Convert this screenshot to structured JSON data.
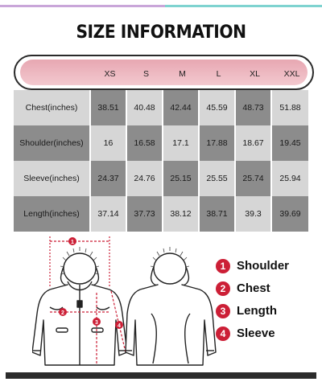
{
  "title": "SIZE INFORMATION",
  "table": {
    "sizes": [
      "XS",
      "S",
      "M",
      "L",
      "XL",
      "XXL"
    ],
    "rows": [
      {
        "label": "Chest(inches)",
        "values": [
          "38.51",
          "40.48",
          "42.44",
          "45.59",
          "48.73",
          "51.88"
        ]
      },
      {
        "label": "Shoulder(inches)",
        "values": [
          "16",
          "16.58",
          "17.1",
          "17.88",
          "18.67",
          "19.45"
        ]
      },
      {
        "label": "Sleeve(inches)",
        "values": [
          "24.37",
          "24.76",
          "25.15",
          "25.55",
          "25.74",
          "25.94"
        ]
      },
      {
        "label": "Length(inches)",
        "values": [
          "37.14",
          "37.73",
          "38.12",
          "38.71",
          "39.3",
          "39.69"
        ]
      }
    ]
  },
  "diagram_markers": [
    "1",
    "2",
    "3",
    "4"
  ],
  "legend": [
    {
      "num": "1",
      "label": "Shoulder"
    },
    {
      "num": "2",
      "label": "Chest"
    },
    {
      "num": "3",
      "label": "Length"
    },
    {
      "num": "4",
      "label": "Sleeve"
    }
  ],
  "colors": {
    "accent_red": "#cc1f36",
    "header_pink": "#eab1ba",
    "row_light": "#d6d6d6",
    "row_dark": "#8c8c8c"
  }
}
